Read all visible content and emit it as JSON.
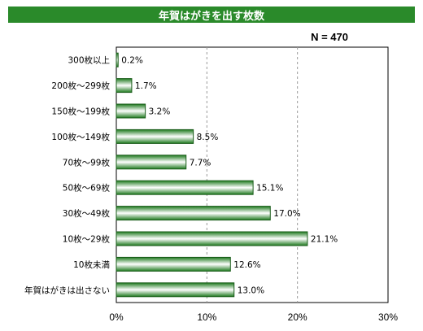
{
  "title": "年賀はがきを出す枚数",
  "n_label": "N = 470",
  "colors": {
    "title_bg": "#2a8a2a",
    "bar_dark": "#1e7a1e",
    "bar_light": "#ffffff"
  },
  "chart_data": {
    "type": "bar",
    "orientation": "horizontal",
    "categories": [
      "300枚以上",
      "200枚〜299枚",
      "150枚〜199枚",
      "100枚〜149枚",
      "70枚〜99枚",
      "50枚〜69枚",
      "30枚〜49枚",
      "10枚〜29枚",
      "10枚未満",
      "年賀はがきは出さない"
    ],
    "values": [
      0.2,
      1.7,
      3.2,
      8.5,
      7.7,
      15.1,
      17.0,
      21.1,
      12.6,
      13.0
    ],
    "value_labels": [
      "0.2%",
      "1.7%",
      "3.2%",
      "8.5%",
      "7.7%",
      "15.1%",
      "17.0%",
      "21.1%",
      "12.6%",
      "13.0%"
    ],
    "xlim": [
      0,
      30
    ],
    "xticks": [
      "0%",
      "10%",
      "20%",
      "30%"
    ],
    "grid": "vertical dashed"
  }
}
